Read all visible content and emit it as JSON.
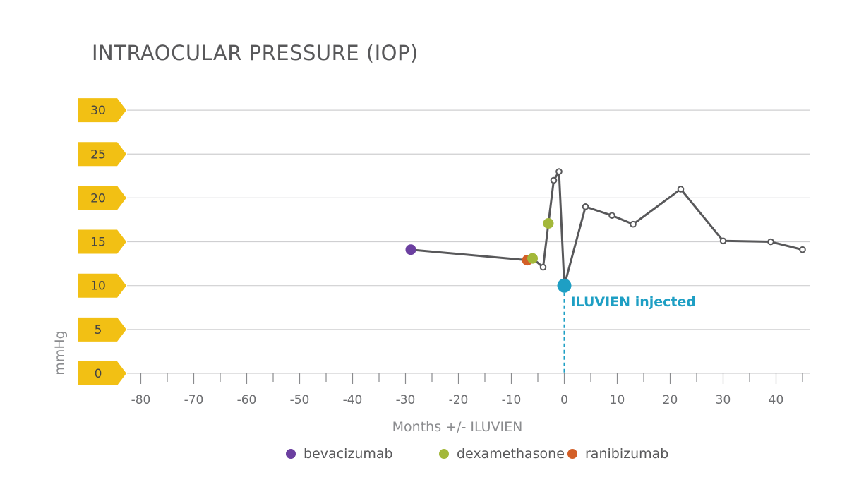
{
  "chart_data": {
    "type": "line",
    "title": "INTRAOCULAR PRESSURE (IOP)",
    "xlabel": "Months +/- ILUVIEN",
    "ylabel": "mmHg",
    "xlim": [
      -80,
      45
    ],
    "ylim": [
      0,
      30
    ],
    "x_ticks": [
      -80,
      -70,
      -60,
      -50,
      -40,
      -30,
      -20,
      -10,
      0,
      10,
      20,
      30,
      40
    ],
    "y_ticks": [
      0,
      5,
      10,
      15,
      20,
      25,
      30
    ],
    "grid": "horizontal",
    "series": [
      {
        "x": [
          -29,
          -7,
          -6,
          -4,
          -3,
          -2,
          -1,
          0,
          4,
          9,
          13,
          22,
          30,
          39,
          45
        ],
        "y": [
          14.1,
          12.9,
          13.1,
          12.1,
          17.1,
          22,
          23,
          10,
          19,
          18,
          17,
          21,
          15.1,
          15,
          14.1
        ],
        "treatment": [
          "bevacizumab",
          "ranibizumab",
          "dexamethasone",
          null,
          "dexamethasone",
          null,
          null,
          "iluvien",
          null,
          null,
          null,
          null,
          null,
          null,
          null
        ]
      }
    ],
    "colors": {
      "line": "#58585a",
      "bevacizumab": "#6b3fa0",
      "dexamethasone": "#a3b83a",
      "ranibizumab": "#d35f27",
      "iluvien": "#1e9fc4",
      "ytick_tag": "#f2c014",
      "grid": "#cfcfd1"
    },
    "annotation": {
      "x": 0,
      "text": "ILUVIEN injected"
    },
    "legend": {
      "position": "bottom",
      "items": [
        {
          "label": "bevacizumab",
          "color": "#6b3fa0"
        },
        {
          "label": "dexamethasone",
          "color": "#a3b83a"
        },
        {
          "label": "ranibizumab",
          "color": "#d35f27"
        }
      ]
    }
  }
}
